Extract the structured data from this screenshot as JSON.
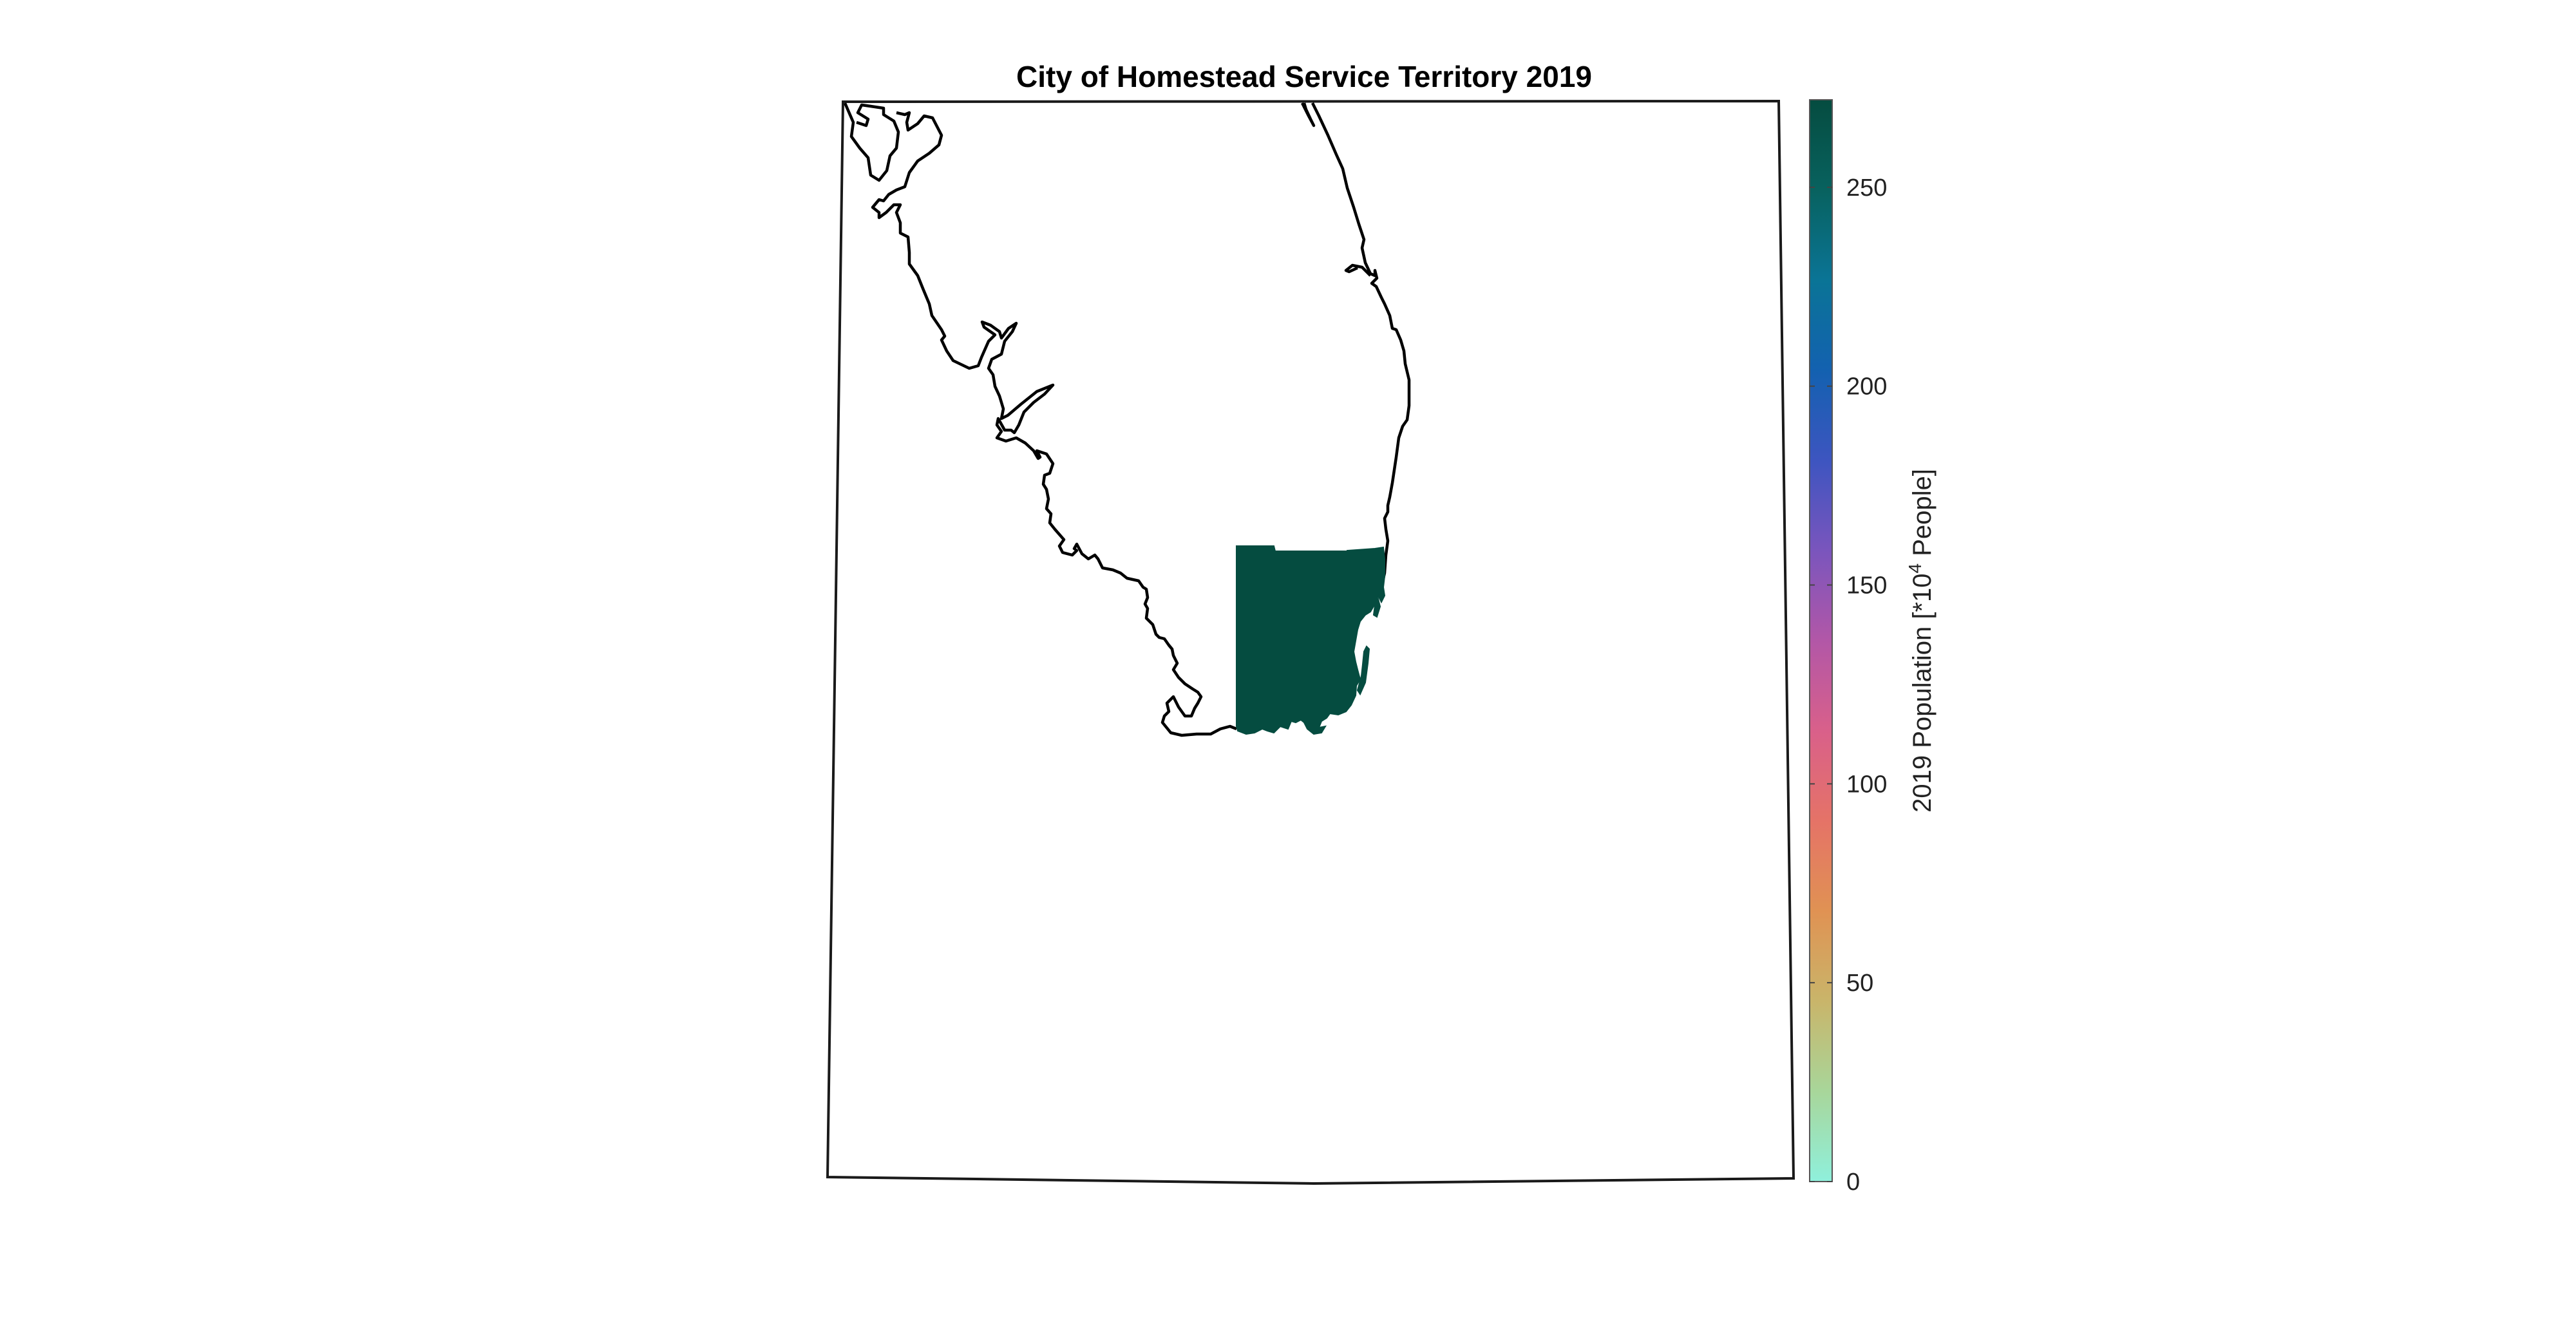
{
  "title": "City of Homestead Service Territory 2019",
  "colorbar": {
    "label_prefix": "2019 Population [*10",
    "label_exponent": "4",
    "label_suffix": " People]",
    "range": [
      0,
      272
    ],
    "ticks": [
      {
        "value": 0,
        "label": "0"
      },
      {
        "value": 50,
        "label": "50"
      },
      {
        "value": 100,
        "label": "100"
      },
      {
        "value": 150,
        "label": "150"
      },
      {
        "value": 200,
        "label": "200"
      },
      {
        "value": 250,
        "label": "250"
      }
    ],
    "colormap": [
      "#8ff0dc",
      "#a8d69a",
      "#c9b56a",
      "#e09253",
      "#e57367",
      "#d9608a",
      "#b257a7",
      "#7a55bd",
      "#3d55c0",
      "#1361b0",
      "#0a7496",
      "#08625f",
      "#054c40"
    ]
  },
  "map": {
    "region_fill": "#054c40",
    "coastline_color": "#000000",
    "highlighted_region_population": 272
  }
}
